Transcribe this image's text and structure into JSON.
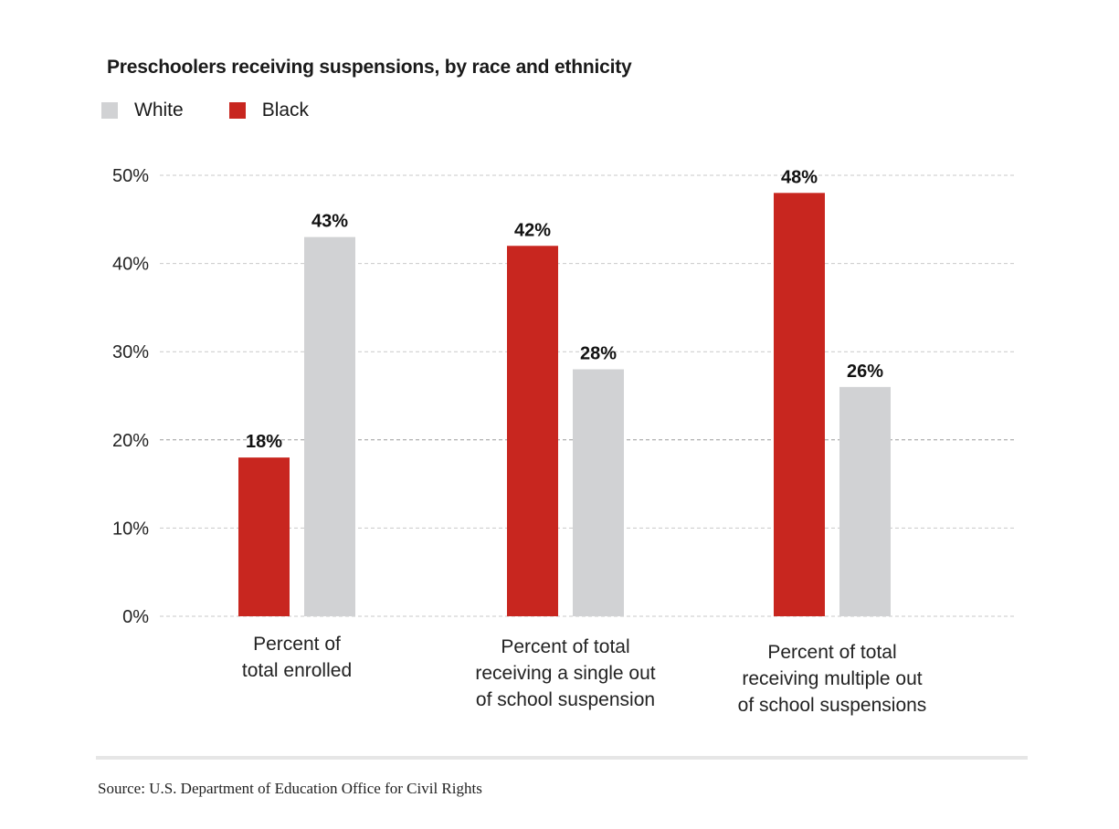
{
  "chart_data": {
    "type": "bar",
    "title": "Preschoolers receiving suspensions, by race and ethnicity",
    "xlabel": "",
    "ylabel": "",
    "ylim": [
      0,
      50
    ],
    "yticks": [
      0,
      10,
      20,
      30,
      40,
      50
    ],
    "ytick_labels": [
      "0%",
      "10%",
      "20%",
      "30%",
      "40%",
      "50%"
    ],
    "grid": true,
    "legend_position": "top-left",
    "categories": [
      [
        "Percent of",
        "total enrolled"
      ],
      [
        "Percent of total",
        "receiving a single out",
        "of school suspension"
      ],
      [
        "Percent of total",
        "receiving multiple out",
        "of school suspensions"
      ]
    ],
    "series": [
      {
        "name": "Black",
        "color": "#c8261f",
        "values": [
          18,
          42,
          48
        ],
        "labels": [
          "18%",
          "42%",
          "48%"
        ]
      },
      {
        "name": "White",
        "color": "#d1d2d4",
        "values": [
          43,
          28,
          26
        ],
        "labels": [
          "43%",
          "28%",
          "26%"
        ]
      }
    ],
    "legend": [
      {
        "name": "White",
        "color": "#d1d2d4"
      },
      {
        "name": "Black",
        "color": "#c8261f"
      }
    ],
    "source": "Source: U.S. Department of Education Office for Civil Rights"
  }
}
